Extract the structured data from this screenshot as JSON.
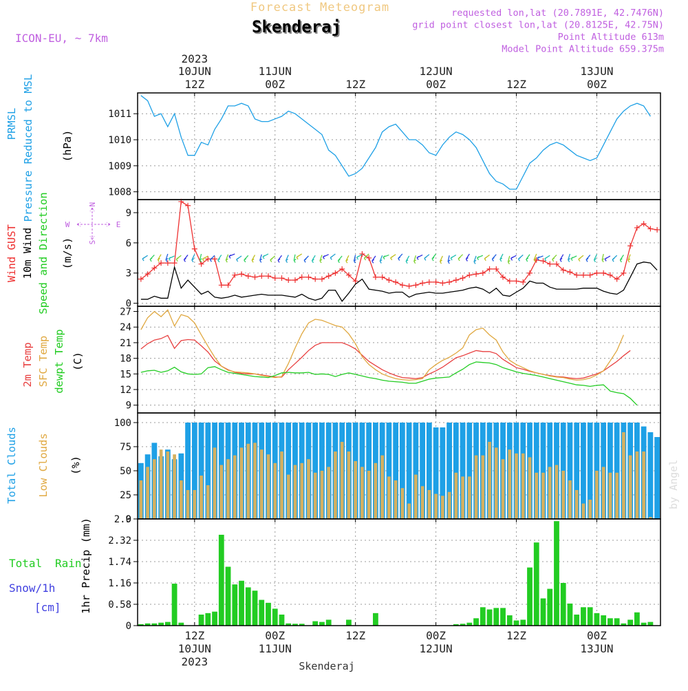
{
  "header": {
    "super_title": "Forecast Meteogram",
    "station": "Skenderaj",
    "model": "ICON-EU, ~ 7km",
    "info": [
      "requested lon,lat (20.7891E, 42.7476N)",
      "grid point closest lon,lat (20.8125E, 42.75N)",
      "Point Altitude 613m",
      "Model Point Altitude 659.375m"
    ],
    "footer": "Skenderaj",
    "watermark": "by Angel"
  },
  "time_axis": {
    "top_year": "2023",
    "ticks": [
      {
        "date": "10JUN",
        "hour": "12Z",
        "year": "2023"
      },
      {
        "date": "11JUN",
        "hour": "00Z",
        "year": ""
      },
      {
        "date": "",
        "hour": "12Z",
        "year": ""
      },
      {
        "date": "12JUN",
        "hour": "00Z",
        "year": ""
      },
      {
        "date": "",
        "hour": "12Z",
        "year": ""
      },
      {
        "date": "13JUN",
        "hour": "00Z",
        "year": ""
      }
    ],
    "hours": [
      -12,
      0,
      12,
      24,
      36,
      48
    ]
  },
  "panels": {
    "pressure": {
      "labels": [
        "PRMSL",
        "Pressure Reduced to MSL"
      ],
      "unit": "(hPa)"
    },
    "wind": {
      "labels": [
        "Wind GUST",
        "10m Wind",
        "Speed and Direction"
      ],
      "unit": "(m/s)",
      "compass": {
        "w": "W",
        "e": "E",
        "n": "N",
        "s": "S"
      }
    },
    "temp": {
      "labels": [
        "2m Temp",
        "SFC Temp",
        "dewpt Temp"
      ],
      "unit": "(C)"
    },
    "clouds": {
      "labels": [
        "Total Clouds",
        "Low Clouds"
      ],
      "unit": "(%)"
    },
    "precip": {
      "labels": [
        "Total",
        "Rain",
        "Snow/1h",
        "[cm]"
      ],
      "unit": "1hr Precip (mm)"
    }
  },
  "colors": {
    "pressure": "#1ea0e6",
    "gust": "#ee3030",
    "wind": "#000000",
    "temp2m": "#e84040",
    "sfc": "#e0a840",
    "dewpt": "#22cc22",
    "total_cloud": "#1ea0e6",
    "low_cloud": "#d4b060",
    "precip": "#22cc22",
    "label_purple": "#c060e0",
    "label_green": "#22cc22",
    "label_blue": "#4040e0",
    "super_title": "#f0c880"
  },
  "chart_data": [
    {
      "type": "line",
      "name": "pressure",
      "x_start": -20,
      "x_step": 1,
      "ylim": [
        1007.7,
        1011.8
      ],
      "yticks": [
        1008,
        1009,
        1010,
        1011
      ],
      "series": [
        {
          "name": "PRMSL",
          "values": [
            1011.7,
            1011.5,
            1010.9,
            1011.0,
            1010.5,
            1011.0,
            1010.1,
            1009.4,
            1009.4,
            1009.9,
            1009.8,
            1010.4,
            1010.8,
            1011.3,
            1011.3,
            1011.4,
            1011.3,
            1010.8,
            1010.7,
            1010.7,
            1010.8,
            1010.9,
            1011.1,
            1011.0,
            1010.8,
            1010.6,
            1010.4,
            1010.2,
            1009.6,
            1009.4,
            1009.0,
            1008.6,
            1008.7,
            1008.9,
            1009.3,
            1009.7,
            1010.3,
            1010.5,
            1010.6,
            1010.3,
            1010.0,
            1010.0,
            1009.8,
            1009.5,
            1009.4,
            1009.8,
            1010.1,
            1010.3,
            1010.2,
            1010.0,
            1009.7,
            1009.2,
            1008.7,
            1008.4,
            1008.3,
            1008.1,
            1008.1,
            1008.6,
            1009.1,
            1009.3,
            1009.6,
            1009.8,
            1009.9,
            1009.8,
            1009.6,
            1009.4,
            1009.3,
            1009.2,
            1009.3,
            1009.8,
            1010.3,
            1010.8,
            1011.1,
            1011.3,
            1011.4,
            1011.3,
            1010.9
          ]
        }
      ]
    },
    {
      "type": "line",
      "name": "wind",
      "x_start": -20,
      "x_step": 1,
      "ylim": [
        -0.3,
        10.3
      ],
      "yticks": [
        0,
        3,
        6,
        9
      ],
      "series": [
        {
          "name": "Wind GUST",
          "values": [
            2.4,
            2.9,
            3.5,
            4.0,
            4.0,
            4.0,
            10.1,
            9.7,
            5.4,
            3.9,
            4.4,
            4.4,
            1.8,
            1.8,
            2.8,
            2.9,
            2.7,
            2.6,
            2.7,
            2.7,
            2.5,
            2.5,
            2.3,
            2.3,
            2.6,
            2.6,
            2.4,
            2.4,
            2.7,
            3.0,
            3.4,
            2.8,
            2.2,
            4.9,
            4.5,
            2.6,
            2.6,
            2.3,
            2.1,
            1.8,
            1.7,
            1.8,
            2.0,
            2.1,
            2.1,
            2.0,
            2.1,
            2.3,
            2.5,
            2.8,
            2.9,
            3.0,
            3.4,
            3.4,
            2.6,
            2.2,
            2.2,
            2.1,
            3.0,
            4.3,
            4.2,
            3.9,
            3.9,
            3.3,
            3.1,
            2.8,
            2.8,
            2.8,
            3.0,
            3.0,
            2.8,
            2.4,
            3.0,
            5.7,
            7.5,
            7.9,
            7.4,
            7.3
          ]
        },
        {
          "name": "10m Wind",
          "values": [
            0.4,
            0.4,
            0.7,
            0.5,
            0.5,
            3.6,
            1.5,
            2.3,
            1.6,
            0.9,
            1.2,
            0.6,
            0.5,
            0.6,
            0.8,
            0.6,
            0.7,
            0.8,
            0.9,
            0.8,
            0.8,
            0.8,
            0.7,
            0.6,
            0.9,
            0.5,
            0.3,
            0.5,
            1.3,
            1.3,
            0.2,
            1.0,
            1.9,
            2.4,
            1.4,
            1.3,
            1.2,
            1.0,
            1.1,
            1.1,
            0.6,
            0.9,
            1.0,
            1.1,
            1.0,
            1.0,
            1.1,
            1.2,
            1.3,
            1.5,
            1.6,
            1.4,
            1.0,
            1.5,
            0.8,
            0.7,
            1.1,
            1.5,
            2.2,
            2.0,
            2.0,
            1.6,
            1.4,
            1.4,
            1.4,
            1.4,
            1.5,
            1.5,
            1.5,
            1.2,
            1.0,
            0.9,
            1.3,
            2.6,
            3.9,
            4.1,
            4.0,
            3.3
          ]
        }
      ]
    },
    {
      "type": "line",
      "name": "temperature",
      "x_start": -20,
      "x_step": 1,
      "ylim": [
        7.5,
        28
      ],
      "yticks": [
        9,
        12,
        15,
        18,
        21,
        24,
        27
      ],
      "series": [
        {
          "name": "2m Temp",
          "values": [
            19.8,
            20.8,
            21.5,
            21.8,
            22.4,
            19.9,
            21.4,
            21.6,
            21.5,
            20.4,
            19.2,
            17.5,
            16.5,
            15.8,
            15.3,
            15.1,
            15.0,
            15.0,
            14.8,
            14.6,
            14.4,
            14.4,
            15.8,
            17.0,
            18.2,
            19.5,
            20.5,
            21.0,
            21.0,
            21.0,
            21.0,
            20.5,
            19.8,
            18.6,
            17.4,
            16.6,
            15.8,
            15.2,
            14.7,
            14.3,
            14.2,
            14.1,
            14.3,
            15.0,
            15.6,
            16.3,
            17.2,
            18.1,
            18.5,
            19.0,
            19.5,
            19.3,
            19.3,
            18.9,
            17.8,
            17.0,
            16.2,
            15.9,
            15.5,
            15.2,
            14.9,
            14.7,
            14.5,
            14.4,
            14.2,
            14.1,
            14.2,
            14.6,
            15.0,
            15.6,
            16.5,
            17.4,
            18.5,
            19.5
          ]
        },
        {
          "name": "SFC Temp",
          "values": [
            23.5,
            25.8,
            27.0,
            26.0,
            27.3,
            24.2,
            26.4,
            26.0,
            24.8,
            22.5,
            20.3,
            18.2,
            16.5,
            15.7,
            15.4,
            15.3,
            15.2,
            15.0,
            14.7,
            14.5,
            14.3,
            14.5,
            17.0,
            20.0,
            22.7,
            24.8,
            25.5,
            25.3,
            24.8,
            24.3,
            24.0,
            22.7,
            20.8,
            18.3,
            16.8,
            15.8,
            15.0,
            14.5,
            14.1,
            13.9,
            13.8,
            13.9,
            14.1,
            15.8,
            16.8,
            17.6,
            18.2,
            19.0,
            20.0,
            22.5,
            23.5,
            23.8,
            22.5,
            21.5,
            19.2,
            17.6,
            16.8,
            16.2,
            15.6,
            15.2,
            14.9,
            14.6,
            14.4,
            14.3,
            14.0,
            13.8,
            13.9,
            14.2,
            14.8,
            15.6,
            17.5,
            19.5,
            22.5
          ]
        },
        {
          "name": "dewpt Temp",
          "values": [
            15.3,
            15.6,
            15.7,
            15.3,
            15.6,
            16.3,
            15.4,
            15.0,
            14.9,
            15.0,
            16.2,
            16.4,
            15.8,
            15.3,
            15.1,
            14.9,
            14.7,
            14.5,
            14.4,
            14.3,
            14.7,
            15.2,
            15.3,
            15.2,
            15.2,
            15.3,
            14.9,
            15.0,
            14.9,
            14.5,
            14.9,
            15.2,
            14.9,
            14.6,
            14.3,
            14.1,
            13.8,
            13.6,
            13.5,
            13.4,
            13.2,
            13.2,
            13.6,
            14.0,
            14.2,
            14.3,
            14.4,
            15.2,
            15.9,
            16.8,
            17.3,
            17.2,
            17.1,
            16.8,
            16.2,
            15.8,
            15.4,
            15.1,
            14.9,
            14.7,
            14.4,
            14.1,
            13.8,
            13.5,
            13.2,
            12.9,
            12.8,
            12.6,
            12.8,
            12.9,
            11.7,
            11.4,
            11.2,
            10.3,
            9.0
          ]
        }
      ]
    },
    {
      "type": "bar",
      "name": "clouds",
      "x_start": -20,
      "x_step": 1,
      "ylim": [
        0,
        110
      ],
      "yticks": [
        0,
        25,
        50,
        75,
        100
      ],
      "series": [
        {
          "name": "Total Clouds",
          "values": [
            58,
            67,
            79,
            65,
            72,
            62,
            68,
            100,
            100,
            100,
            100,
            100,
            100,
            100,
            100,
            100,
            100,
            100,
            100,
            100,
            100,
            100,
            100,
            100,
            100,
            100,
            100,
            100,
            100,
            100,
            100,
            100,
            100,
            100,
            100,
            100,
            100,
            100,
            100,
            100,
            100,
            100,
            100,
            100,
            95,
            95,
            100,
            100,
            100,
            100,
            100,
            100,
            100,
            100,
            100,
            100,
            100,
            100,
            100,
            100,
            100,
            100,
            100,
            100,
            100,
            100,
            100,
            100,
            100,
            100,
            100,
            100,
            100,
            100,
            100,
            96,
            90,
            85,
            78,
            79,
            78
          ]
        },
        {
          "name": "Low Clouds",
          "values": [
            40,
            54,
            62,
            72,
            70,
            67,
            40,
            30,
            30,
            45,
            35,
            74,
            56,
            62,
            66,
            74,
            78,
            79,
            72,
            67,
            58,
            70,
            46,
            56,
            58,
            62,
            48,
            50,
            54,
            70,
            80,
            70,
            60,
            54,
            50,
            58,
            66,
            44,
            40,
            32,
            16,
            46,
            34,
            30,
            26,
            24,
            28,
            48,
            44,
            44,
            66,
            66,
            80,
            74,
            62,
            72,
            68,
            68,
            64,
            48,
            48,
            54,
            56,
            50,
            40,
            30,
            16,
            20,
            50,
            54,
            48,
            48,
            90,
            66,
            70,
            70,
            2
          ]
        }
      ]
    },
    {
      "type": "bar",
      "name": "precipitation",
      "x_start": -20,
      "x_step": 1,
      "ylim": [
        0,
        2.9
      ],
      "yticks": [
        0,
        0.58,
        1.16,
        1.74,
        2.32,
        2.9
      ],
      "ytick_labels": [
        "0",
        "0.58",
        "1.16",
        "1.74",
        "2.32",
        "2.9"
      ],
      "series": [
        {
          "name": "1hr Precip",
          "values": [
            0.04,
            0.06,
            0.06,
            0.08,
            0.1,
            1.14,
            0.08,
            0,
            0,
            0.3,
            0.34,
            0.38,
            2.47,
            1.6,
            1.12,
            1.22,
            1.04,
            0.95,
            0.7,
            0.62,
            0.46,
            0.3,
            0.06,
            0.05,
            0.05,
            0,
            0.12,
            0.1,
            0.16,
            0,
            0,
            0.16,
            0,
            0,
            0,
            0.34,
            0,
            0,
            0,
            0,
            0,
            0,
            0,
            0,
            0,
            0,
            0,
            0.04,
            0.05,
            0.08,
            0.2,
            0.5,
            0.44,
            0.48,
            0.48,
            0.28,
            0.14,
            0.16,
            1.58,
            2.26,
            0.74,
            1.0,
            2.84,
            1.16,
            0.6,
            0.3,
            0.5,
            0.5,
            0.34,
            0.28,
            0.2,
            0.2,
            0.06,
            0.16,
            0.36,
            0.08,
            0.1,
            0
          ]
        }
      ]
    }
  ]
}
